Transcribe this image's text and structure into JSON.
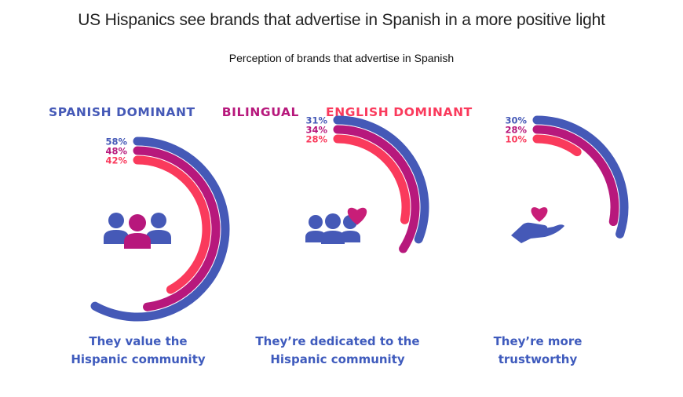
{
  "title": "US Hispanics see brands that advertise in Spanish in a more positive light",
  "subtitle": "Perception of brands that advertise in Spanish",
  "colors": {
    "spanish_dominant": "#4559b7",
    "bilingual": "#b7187c",
    "english_dominant": "#fa3a5c",
    "caption": "#3f5bbd"
  },
  "legend": [
    {
      "label": "SPANISH DOMINANT",
      "color": "#4559b7"
    },
    {
      "label": "BILINGUAL",
      "color": "#b7187c"
    },
    {
      "label": "ENGLISH DOMINANT",
      "color": "#fa3a5c"
    }
  ],
  "chart_data": {
    "type": "radial-bar",
    "series": [
      {
        "name": "SPANISH DOMINANT",
        "color": "#4559b7"
      },
      {
        "name": "BILINGUAL",
        "color": "#b7187c"
      },
      {
        "name": "ENGLISH DOMINANT",
        "color": "#fa3a5c"
      }
    ],
    "categories": [
      {
        "caption": "They value the\nHispanic community",
        "icon": "people-group-icon",
        "values": [
          58,
          48,
          42
        ],
        "labels": [
          "58%",
          "48%",
          "42%"
        ]
      },
      {
        "caption": "They’re dedicated to the\nHispanic community",
        "icon": "people-heart-icon",
        "values": [
          31,
          34,
          28
        ],
        "labels": [
          "31%",
          "34%",
          "28%"
        ]
      },
      {
        "caption": "They’re more\ntrustworthy",
        "icon": "hand-heart-icon",
        "values": [
          30,
          28,
          10
        ],
        "labels": [
          "30%",
          "28%",
          "10%"
        ]
      }
    ]
  }
}
